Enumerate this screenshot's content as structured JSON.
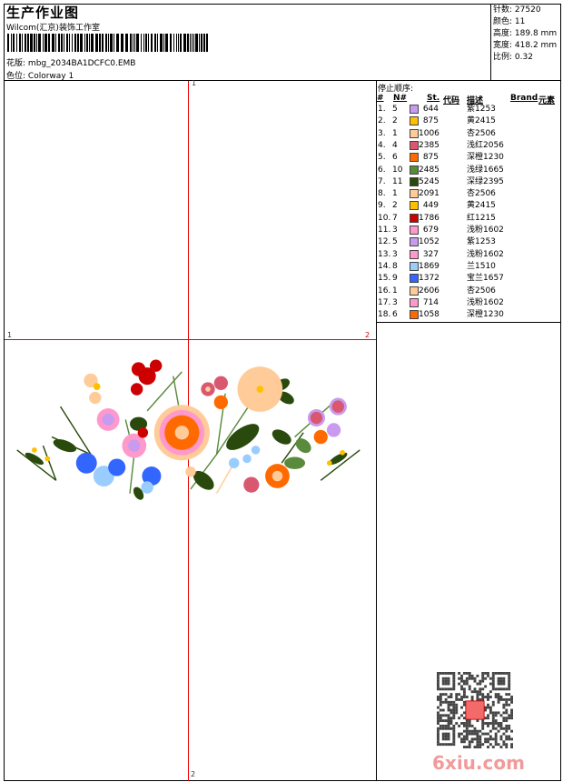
{
  "header": {
    "title": "生产作业图",
    "company": "Wilcom(汇京)装饰工作室",
    "design_label": "花版:",
    "design_value": "mbg_2034BA1DCFC0.EMB",
    "colorway_label": "色位:",
    "colorway_value": "Colorway 1"
  },
  "stats": [
    {
      "label": "针数:",
      "value": "27520"
    },
    {
      "label": "颜色:",
      "value": "11"
    },
    {
      "label": "高度:",
      "value": "189.8 mm"
    },
    {
      "label": "宽度:",
      "value": "418.2 mm"
    },
    {
      "label": "比例:",
      "value": "0.32"
    }
  ],
  "markers": {
    "top": "1",
    "left": "1",
    "right": "2",
    "bottom": "2"
  },
  "sequence": {
    "title": "停止顺序:",
    "columns": [
      "#",
      "N#",
      "St.",
      "代码",
      "描述",
      "Brand",
      "元素"
    ],
    "rows": [
      {
        "idx": "1.",
        "n": "5",
        "color": "#c89bf0",
        "st": "644",
        "desc": "紫1253"
      },
      {
        "idx": "2.",
        "n": "2",
        "color": "#ffc000",
        "st": "875",
        "desc": "黄2415"
      },
      {
        "idx": "3.",
        "n": "1",
        "color": "#ffcc99",
        "st": "1006",
        "desc": "杏2506"
      },
      {
        "idx": "4.",
        "n": "4",
        "color": "#d95870",
        "st": "2385",
        "desc": "浅红2056"
      },
      {
        "idx": "5.",
        "n": "6",
        "color": "#ff6a00",
        "st": "875",
        "desc": "深橙1230"
      },
      {
        "idx": "6.",
        "n": "10",
        "color": "#5a8a3c",
        "st": "2485",
        "desc": "浅绿1665"
      },
      {
        "idx": "7.",
        "n": "11",
        "color": "#294a0c",
        "st": "5245",
        "desc": "深绿2395"
      },
      {
        "idx": "8.",
        "n": "1",
        "color": "#ffcc99",
        "st": "2091",
        "desc": "杏2506"
      },
      {
        "idx": "9.",
        "n": "2",
        "color": "#ffc000",
        "st": "449",
        "desc": "黄2415"
      },
      {
        "idx": "10.",
        "n": "7",
        "color": "#cc0000",
        "st": "1786",
        "desc": "红1215"
      },
      {
        "idx": "11.",
        "n": "3",
        "color": "#ff99cc",
        "st": "679",
        "desc": "浅粉1602"
      },
      {
        "idx": "12.",
        "n": "5",
        "color": "#c89bf0",
        "st": "1052",
        "desc": "紫1253"
      },
      {
        "idx": "13.",
        "n": "3",
        "color": "#ff99cc",
        "st": "327",
        "desc": "浅粉1602"
      },
      {
        "idx": "14.",
        "n": "8",
        "color": "#99ccff",
        "st": "1869",
        "desc": "兰1510"
      },
      {
        "idx": "15.",
        "n": "9",
        "color": "#3366ff",
        "st": "1372",
        "desc": "宝兰1657"
      },
      {
        "idx": "16.",
        "n": "1",
        "color": "#ffcc99",
        "st": "2606",
        "desc": "杏2506"
      },
      {
        "idx": "17.",
        "n": "3",
        "color": "#ff99cc",
        "st": "714",
        "desc": "浅粉1602"
      },
      {
        "idx": "18.",
        "n": "6",
        "color": "#ff6a00",
        "st": "1058",
        "desc": "深橙1230"
      }
    ]
  },
  "watermark": "6xiu.com"
}
